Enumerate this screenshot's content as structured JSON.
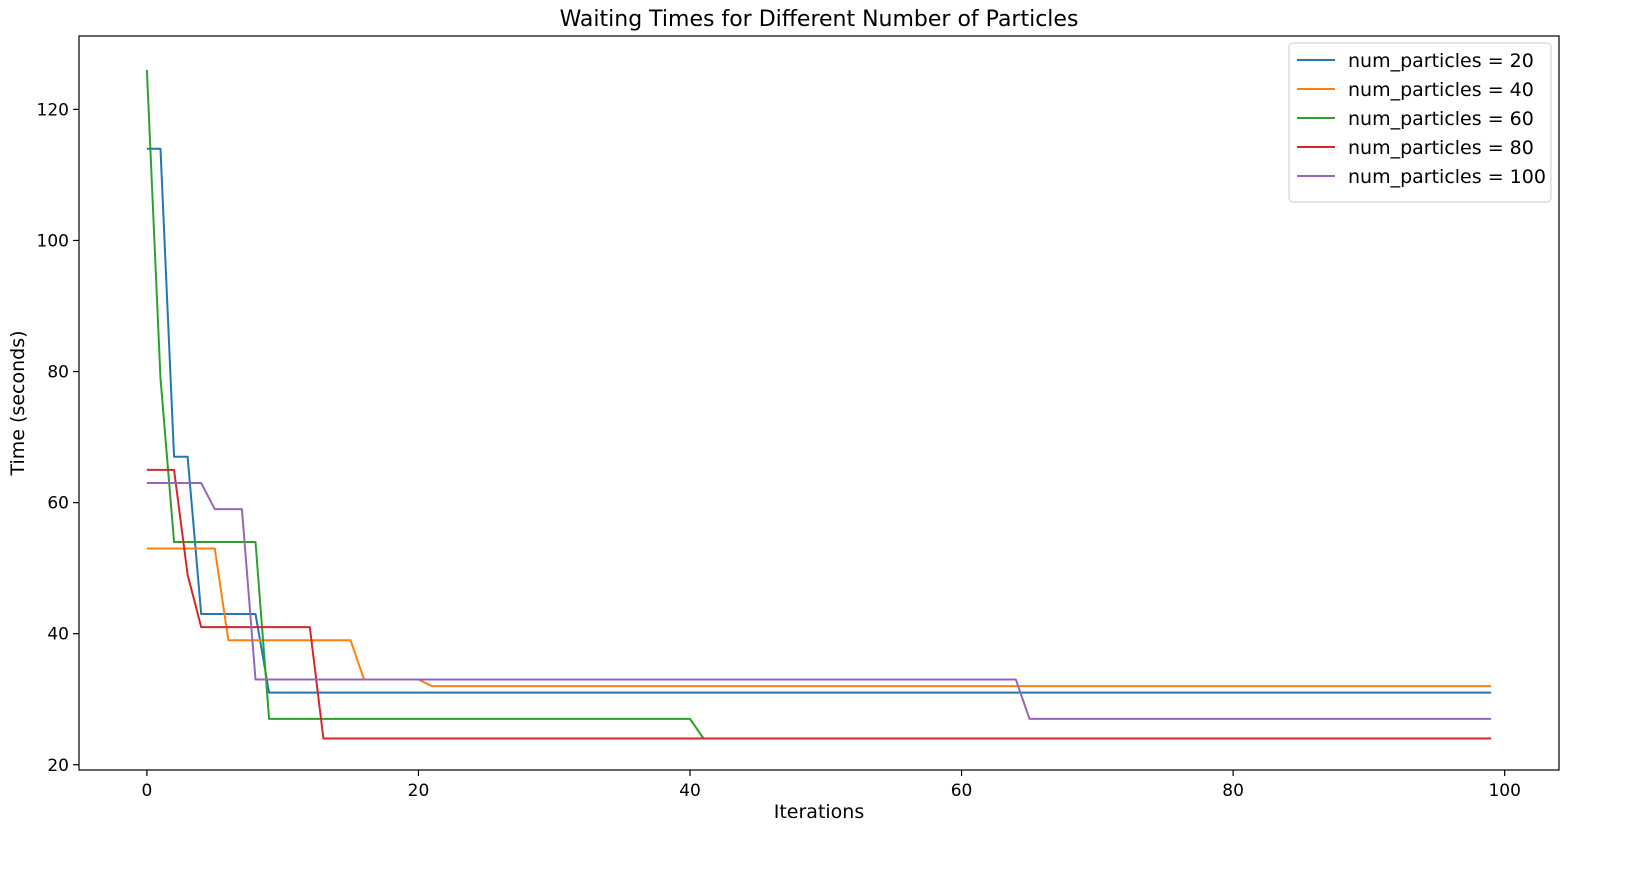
{
  "chart_data": {
    "type": "line",
    "title": "Waiting Times for Different Number of Particles",
    "xlabel": "Iterations",
    "ylabel": "Time (seconds)",
    "xlim": [
      -5,
      104
    ],
    "ylim": [
      19.2,
      131.2
    ],
    "xticks": [
      0,
      20,
      40,
      60,
      80,
      100
    ],
    "yticks": [
      20,
      40,
      60,
      80,
      100,
      120
    ],
    "grid": false,
    "legend_position": "top-right",
    "series": [
      {
        "name": "num_particles = 20",
        "color": "#1f77b4",
        "points": [
          [
            0,
            114
          ],
          [
            1,
            114
          ],
          [
            2,
            67
          ],
          [
            3,
            67
          ],
          [
            4,
            43
          ],
          [
            8,
            43
          ],
          [
            9,
            31
          ],
          [
            99,
            31
          ]
        ]
      },
      {
        "name": "num_particles = 40",
        "color": "#ff7f0e",
        "points": [
          [
            0,
            53
          ],
          [
            5,
            53
          ],
          [
            6,
            39
          ],
          [
            15,
            39
          ],
          [
            16,
            33
          ],
          [
            20,
            33
          ],
          [
            21,
            32
          ],
          [
            99,
            32
          ]
        ]
      },
      {
        "name": "num_particles = 60",
        "color": "#2ca02c",
        "points": [
          [
            0,
            126
          ],
          [
            1,
            79
          ],
          [
            2,
            54
          ],
          [
            8,
            54
          ],
          [
            9,
            27
          ],
          [
            40,
            27
          ],
          [
            41,
            24
          ],
          [
            99,
            24
          ]
        ]
      },
      {
        "name": "num_particles = 80",
        "color": "#d62728",
        "points": [
          [
            0,
            65
          ],
          [
            2,
            65
          ],
          [
            3,
            49
          ],
          [
            4,
            41
          ],
          [
            12,
            41
          ],
          [
            13,
            24
          ],
          [
            99,
            24
          ]
        ]
      },
      {
        "name": "num_particles = 100",
        "color": "#9467bd",
        "points": [
          [
            0,
            63
          ],
          [
            4,
            63
          ],
          [
            5,
            59
          ],
          [
            7,
            59
          ],
          [
            8,
            33
          ],
          [
            64,
            33
          ],
          [
            65,
            27
          ],
          [
            99,
            27
          ]
        ]
      }
    ]
  }
}
